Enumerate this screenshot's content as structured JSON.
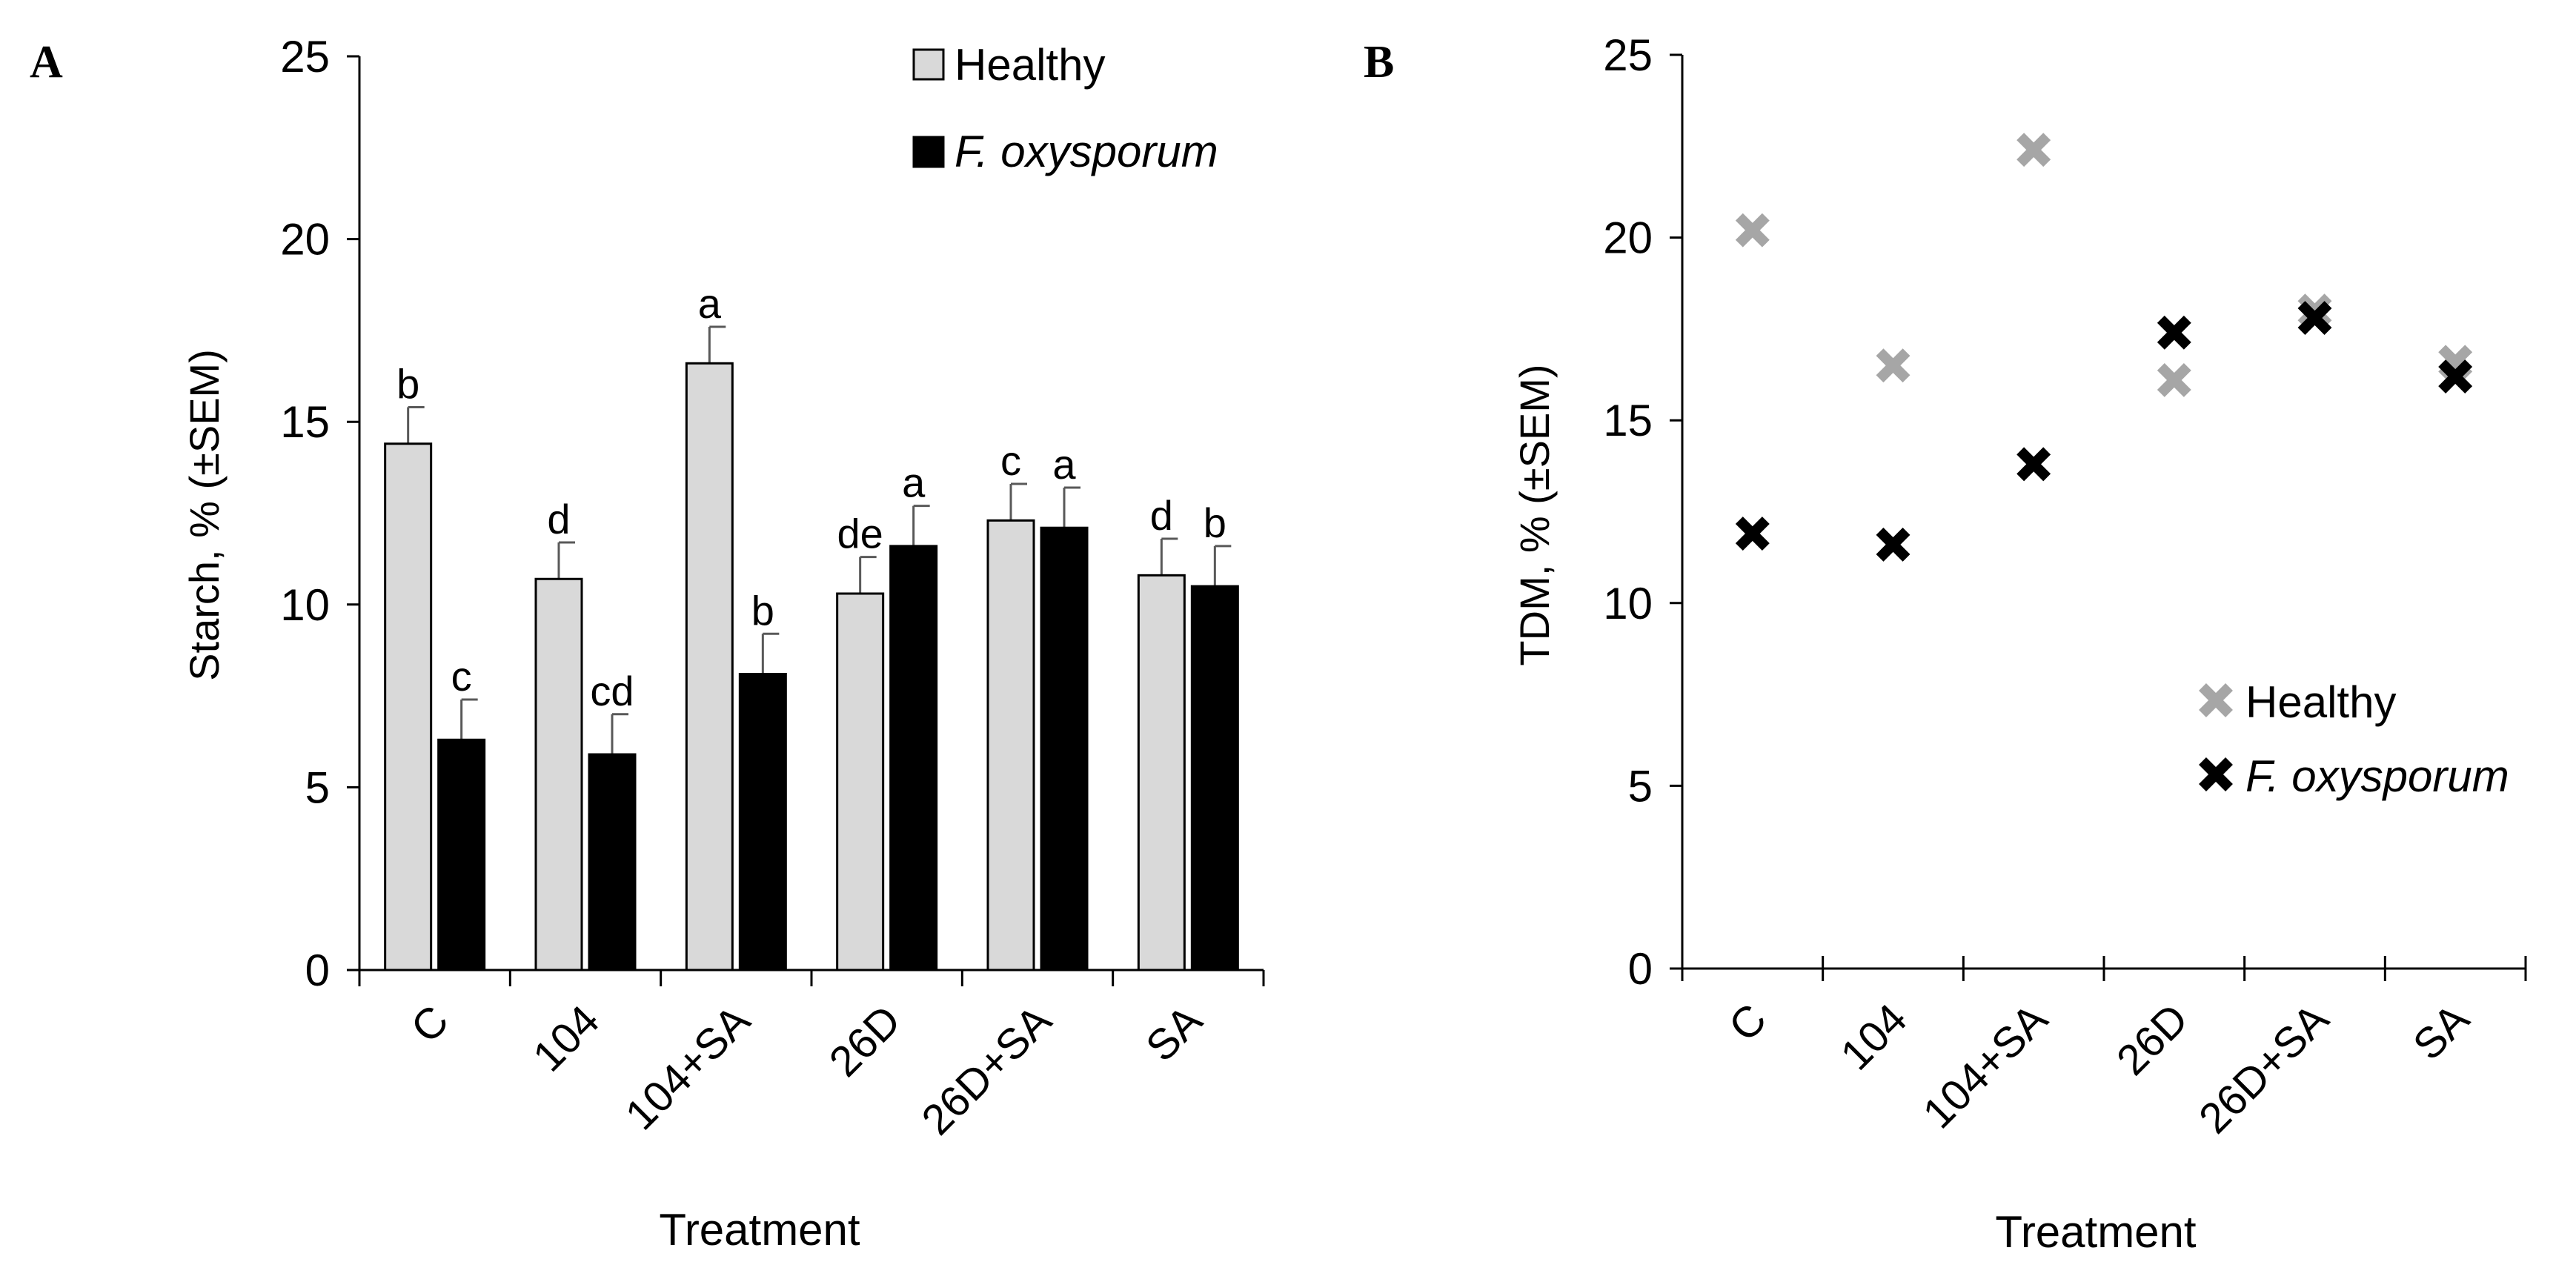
{
  "chart_data": [
    {
      "panel": "A",
      "type": "bar",
      "categories": [
        "C",
        "104",
        "104+SA",
        "26D",
        "26D+SA",
        "SA"
      ],
      "xlabel": "Treatment",
      "ylabel": "Starch, % (±SEM)",
      "ylim": [
        0,
        25
      ],
      "yticks": [
        0,
        5,
        10,
        15,
        20,
        25
      ],
      "grid": false,
      "legend_position": "top-right",
      "series": [
        {
          "name": "Healthy",
          "color": "#d9d9d9",
          "values": [
            14.4,
            10.7,
            16.6,
            10.3,
            12.3,
            10.8
          ],
          "errors": [
            1.0,
            1.0,
            1.0,
            1.0,
            1.0,
            1.0
          ],
          "letters": [
            "b",
            "d",
            "a",
            "de",
            "c",
            "d"
          ]
        },
        {
          "name": "F. oxysporum",
          "italic": true,
          "color": "#000000",
          "values": [
            6.3,
            5.9,
            8.1,
            11.6,
            12.1,
            10.5
          ],
          "errors": [
            1.1,
            1.1,
            1.1,
            1.1,
            1.1,
            1.1
          ],
          "letters": [
            "c",
            "cd",
            "b",
            "a",
            "a",
            "b"
          ]
        }
      ]
    },
    {
      "panel": "B",
      "type": "scatter",
      "categories": [
        "C",
        "104",
        "104+SA",
        "26D",
        "26D+SA",
        "SA"
      ],
      "xlabel": "Treatment",
      "ylabel": "TDM, % (±SEM)",
      "ylim": [
        0,
        25
      ],
      "yticks": [
        0,
        5,
        10,
        15,
        20,
        25
      ],
      "grid": false,
      "legend_position": "center-right",
      "series": [
        {
          "name": "Healthy",
          "color": "#a6a6a6",
          "marker": "x",
          "values": [
            20.2,
            16.5,
            22.4,
            16.1,
            18.0,
            16.6
          ]
        },
        {
          "name": "F. oxysporum",
          "italic": true,
          "color": "#000000",
          "marker": "x",
          "values": [
            11.9,
            11.6,
            13.8,
            17.4,
            17.8,
            16.2
          ]
        }
      ]
    }
  ]
}
